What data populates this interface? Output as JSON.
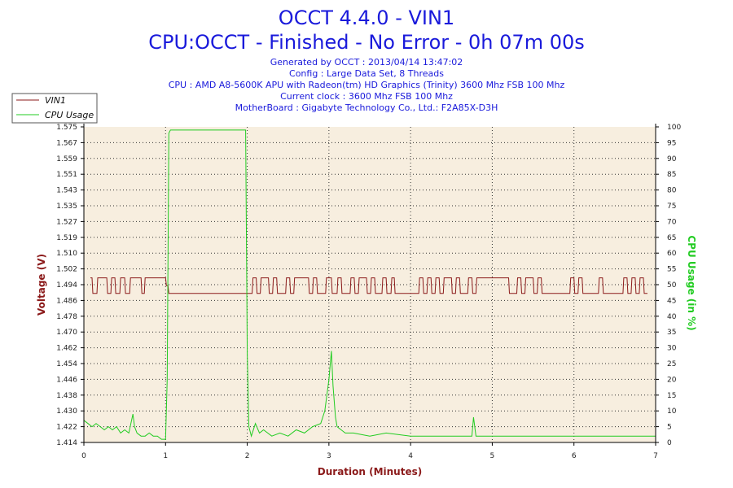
{
  "chart_data": {
    "type": "line",
    "title": "OCCT 4.4.0 - VIN1",
    "subtitle": "CPU:OCCT - Finished - No Error - 0h 07m 00s",
    "info_lines": [
      "Generated by OCCT : 2013/04/14 13:47:02",
      "Config : Large Data Set, 8 Threads",
      "CPU : AMD A8-5600K APU with Radeon(tm) HD Graphics (Trinity) 3600 Mhz FSB 100 Mhz",
      "Current clock : 3600 Mhz FSB 100 Mhz",
      "MotherBoard : Gigabyte Technology Co., Ltd.: F2A85X-D3H"
    ],
    "xlabel": "Duration (Minutes)",
    "ylabel_left": "Voltage (V)",
    "ylabel_right": "CPU Usage (in %)",
    "xlim": [
      0,
      7
    ],
    "ylim_left": [
      1.414,
      1.575
    ],
    "ylim_right": [
      0,
      100
    ],
    "x_ticks": [
      "0",
      "1",
      "2",
      "3",
      "4",
      "5",
      "6",
      "7"
    ],
    "y_left_ticks": [
      "1.575",
      "1.567",
      "1.559",
      "1.551",
      "1.543",
      "1.535",
      "1.527",
      "1.519",
      "1.510",
      "1.502",
      "1.494",
      "1.486",
      "1.478",
      "1.470",
      "1.462",
      "1.454",
      "1.446",
      "1.438",
      "1.430",
      "1.422",
      "1.414"
    ],
    "y_right_ticks": [
      "100",
      "95",
      "90",
      "85",
      "80",
      "75",
      "70",
      "65",
      "60",
      "55",
      "50",
      "45",
      "40",
      "35",
      "30",
      "25",
      "20",
      "15",
      "10",
      "5",
      "0"
    ],
    "grid": true,
    "legend_position": "top-left",
    "series": [
      {
        "name": "VIN1",
        "axis": "left",
        "color": "#8b1a1a",
        "x": [
          0.08,
          0.1,
          0.11,
          0.16,
          0.17,
          0.28,
          0.29,
          0.33,
          0.34,
          0.38,
          0.39,
          0.44,
          0.45,
          0.5,
          0.51,
          0.56,
          0.57,
          0.7,
          0.71,
          0.74,
          0.75,
          1.0,
          1.01,
          1.03,
          1.04,
          2.0,
          2.01,
          2.06,
          2.07,
          2.11,
          2.12,
          2.16,
          2.17,
          2.26,
          2.27,
          2.31,
          2.32,
          2.36,
          2.37,
          2.47,
          2.48,
          2.52,
          2.53,
          2.57,
          2.58,
          2.75,
          2.76,
          2.8,
          2.81,
          2.85,
          2.86,
          2.96,
          2.97,
          3.03,
          3.04,
          3.1,
          3.11,
          3.15,
          3.16,
          3.26,
          3.27,
          3.31,
          3.32,
          3.36,
          3.37,
          3.46,
          3.47,
          3.51,
          3.52,
          3.56,
          3.57,
          3.65,
          3.66,
          3.7,
          3.71,
          3.76,
          3.77,
          3.8,
          3.81,
          4.1,
          4.11,
          4.15,
          4.16,
          4.2,
          4.21,
          4.25,
          4.26,
          4.3,
          4.31,
          4.35,
          4.36,
          4.4,
          4.41,
          4.5,
          4.51,
          4.55,
          4.56,
          4.6,
          4.61,
          4.7,
          4.71,
          4.75,
          4.76,
          4.8,
          4.81,
          5.2,
          5.21,
          5.3,
          5.31,
          5.35,
          5.36,
          5.4,
          5.41,
          5.5,
          5.51,
          5.55,
          5.56,
          5.6,
          5.61,
          5.95,
          5.96,
          6.0,
          6.01,
          6.05,
          6.06,
          6.1,
          6.11,
          6.3,
          6.31,
          6.35,
          6.36,
          6.6,
          6.61,
          6.65,
          6.66,
          6.7,
          6.71,
          6.75,
          6.76,
          6.8,
          6.81,
          6.85,
          6.86,
          6.9
        ],
        "values": [
          1.498,
          1.498,
          1.49,
          1.49,
          1.498,
          1.498,
          1.49,
          1.49,
          1.498,
          1.498,
          1.49,
          1.49,
          1.498,
          1.498,
          1.49,
          1.49,
          1.498,
          1.498,
          1.49,
          1.49,
          1.498,
          1.498,
          1.494,
          1.494,
          1.49,
          1.49,
          1.49,
          1.49,
          1.498,
          1.498,
          1.49,
          1.49,
          1.498,
          1.498,
          1.49,
          1.49,
          1.498,
          1.498,
          1.49,
          1.49,
          1.498,
          1.498,
          1.49,
          1.49,
          1.498,
          1.498,
          1.49,
          1.49,
          1.498,
          1.498,
          1.49,
          1.49,
          1.498,
          1.498,
          1.49,
          1.49,
          1.498,
          1.498,
          1.49,
          1.49,
          1.498,
          1.498,
          1.49,
          1.49,
          1.498,
          1.498,
          1.49,
          1.49,
          1.498,
          1.498,
          1.49,
          1.49,
          1.498,
          1.498,
          1.49,
          1.49,
          1.498,
          1.498,
          1.49,
          1.49,
          1.498,
          1.498,
          1.49,
          1.49,
          1.498,
          1.498,
          1.49,
          1.49,
          1.498,
          1.498,
          1.49,
          1.49,
          1.498,
          1.498,
          1.49,
          1.49,
          1.498,
          1.498,
          1.49,
          1.49,
          1.498,
          1.498,
          1.49,
          1.49,
          1.498,
          1.498,
          1.49,
          1.49,
          1.498,
          1.498,
          1.49,
          1.49,
          1.498,
          1.498,
          1.49,
          1.49,
          1.498,
          1.498,
          1.49,
          1.49,
          1.498,
          1.498,
          1.49,
          1.49,
          1.498,
          1.498,
          1.49,
          1.49,
          1.498,
          1.498,
          1.49,
          1.49,
          1.498,
          1.498,
          1.49,
          1.49,
          1.498,
          1.498,
          1.49,
          1.49,
          1.498,
          1.498,
          1.49,
          1.49
        ]
      },
      {
        "name": "CPU Usage",
        "axis": "right",
        "color": "#22cc22",
        "x": [
          0.0,
          0.05,
          0.1,
          0.15,
          0.2,
          0.25,
          0.3,
          0.35,
          0.4,
          0.45,
          0.5,
          0.55,
          0.6,
          0.62,
          0.65,
          0.7,
          0.75,
          0.8,
          0.85,
          0.9,
          0.95,
          1.0,
          1.02,
          1.04,
          1.06,
          1.1,
          1.2,
          1.3,
          1.4,
          1.5,
          1.6,
          1.7,
          1.8,
          1.9,
          1.98,
          2.0,
          2.02,
          2.05,
          2.1,
          2.15,
          2.2,
          2.3,
          2.4,
          2.5,
          2.6,
          2.7,
          2.8,
          2.9,
          2.95,
          3.0,
          3.03,
          3.05,
          3.08,
          3.1,
          3.15,
          3.2,
          3.3,
          3.5,
          3.7,
          4.0,
          4.3,
          4.6,
          4.75,
          4.77,
          4.8,
          5.0,
          5.3,
          5.6,
          5.9,
          6.2,
          6.5,
          6.8,
          7.0
        ],
        "values": [
          7,
          6,
          5,
          6,
          5,
          4,
          5,
          4,
          5,
          3,
          4,
          3,
          9,
          5,
          3,
          2,
          2,
          3,
          2,
          2,
          1,
          1,
          20,
          98,
          99,
          99,
          99,
          99,
          99,
          99,
          99,
          99,
          99,
          99,
          99,
          28,
          5,
          2,
          6,
          3,
          4,
          2,
          3,
          2,
          4,
          3,
          5,
          6,
          10,
          20,
          29,
          18,
          8,
          5,
          4,
          3,
          3,
          2,
          3,
          2,
          2,
          2,
          2,
          8,
          2,
          2,
          2,
          2,
          2,
          2,
          2,
          2,
          2
        ]
      }
    ]
  }
}
